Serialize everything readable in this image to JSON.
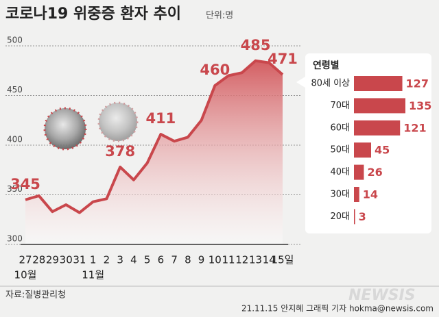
{
  "title": "코로나19 위중증 환자 추이",
  "unit": "단위:명",
  "source": "자료:질병관리청",
  "credit": "21.11.15 안지혜 그래픽 기자 hokma@newsis.com",
  "watermark": "NEWSIS",
  "chart_data": [
    {
      "type": "line",
      "fill": true,
      "categories": [
        "27",
        "28",
        "29",
        "30",
        "31",
        "1",
        "2",
        "3",
        "4",
        "5",
        "6",
        "7",
        "8",
        "9",
        "10",
        "11",
        "12",
        "13",
        "14",
        "15일"
      ],
      "month_labels": [
        "10월",
        "11월"
      ],
      "series": [
        {
          "color": "#c9474c",
          "values": [
            345,
            349,
            333,
            340,
            332,
            343,
            346,
            378,
            365,
            382,
            411,
            404,
            408,
            425,
            460,
            470,
            473,
            485,
            483,
            471
          ],
          "value_labels": [
            "345",
            null,
            null,
            null,
            null,
            null,
            null,
            "378",
            null,
            null,
            "411",
            null,
            null,
            null,
            "460",
            null,
            null,
            "485",
            null,
            "471"
          ]
        }
      ],
      "ylim": [
        300,
        500
      ],
      "yticks": [
        300,
        350,
        400,
        450,
        500
      ],
      "grid": true
    },
    {
      "type": "bar",
      "orientation": "horizontal",
      "title": "연령별",
      "color": "#c9474c",
      "categories": [
        "80세 이상",
        "70대",
        "60대",
        "50대",
        "40대",
        "30대",
        "20대"
      ],
      "values": [
        127,
        135,
        121,
        45,
        26,
        14,
        3
      ]
    }
  ]
}
